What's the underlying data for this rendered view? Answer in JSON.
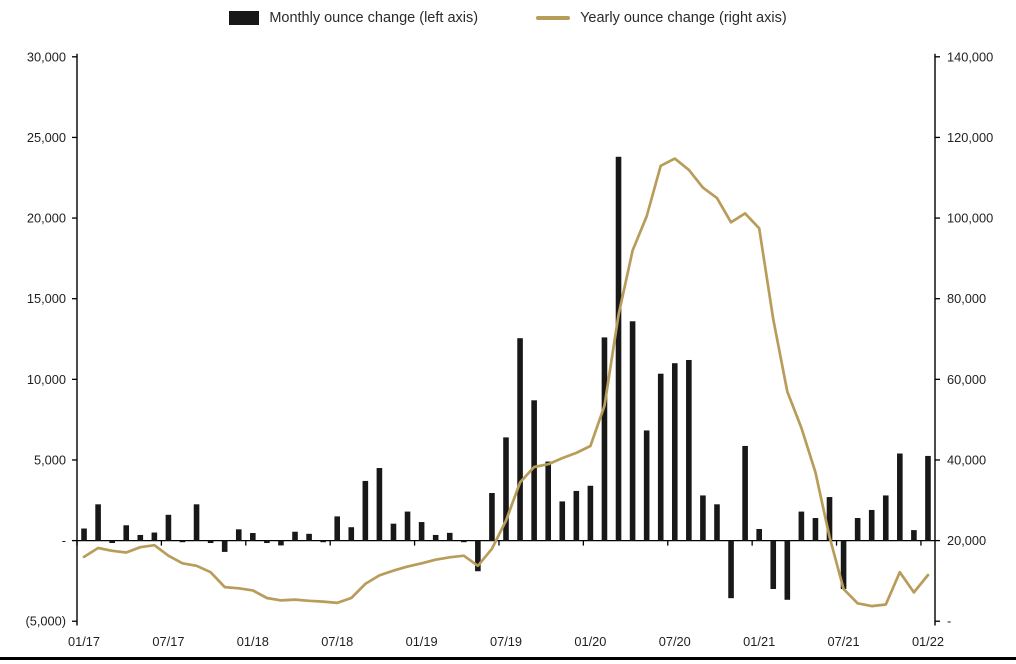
{
  "legend": {
    "monthly_label": "Monthly ounce change (left axis)",
    "yearly_label": "Yearly ounce change (right axis)"
  },
  "colors": {
    "bar": "#181818",
    "line": "#b89c5a",
    "axis": "#000000",
    "text": "#1f1f1f",
    "background": "#ffffff"
  },
  "chart_data": {
    "type": "combo-bar-line",
    "title": "",
    "categories": [
      "01/17",
      "02/17",
      "03/17",
      "04/17",
      "05/17",
      "06/17",
      "07/17",
      "08/17",
      "09/17",
      "10/17",
      "11/17",
      "12/17",
      "01/18",
      "02/18",
      "03/18",
      "04/18",
      "05/18",
      "06/18",
      "07/18",
      "08/18",
      "09/18",
      "10/18",
      "11/18",
      "12/18",
      "01/19",
      "02/19",
      "03/19",
      "04/19",
      "05/19",
      "06/19",
      "07/19",
      "08/19",
      "09/19",
      "10/19",
      "11/19",
      "12/19",
      "01/20",
      "02/20",
      "03/20",
      "04/20",
      "05/20",
      "06/20",
      "07/20",
      "08/20",
      "09/20",
      "10/20",
      "11/20",
      "12/20",
      "01/21",
      "02/21",
      "03/21",
      "04/21",
      "05/21",
      "06/21",
      "07/21",
      "08/21",
      "09/21",
      "10/21",
      "11/21",
      "12/21",
      "01/22"
    ],
    "series": [
      {
        "name": "Monthly ounce change (left axis)",
        "type": "bar",
        "axis": "left",
        "color": "#181818",
        "values": [
          750,
          2250,
          -150,
          950,
          350,
          500,
          1600,
          -100,
          2250,
          -150,
          -700,
          700,
          470,
          -150,
          -300,
          550,
          420,
          -100,
          1500,
          830,
          3700,
          4500,
          1050,
          1800,
          1150,
          350,
          480,
          -100,
          -1900,
          2950,
          6400,
          12550,
          8700,
          4900,
          2430,
          3080,
          3400,
          12600,
          23800,
          13600,
          6830,
          10350,
          11000,
          11200,
          2800,
          2250,
          -3570,
          5870,
          720,
          -3000,
          -3670,
          1800,
          1400,
          2700,
          -3000,
          1400,
          1900,
          2800,
          5400,
          650,
          5250
        ]
      },
      {
        "name": "Yearly ounce change (right axis)",
        "type": "line",
        "axis": "right",
        "color": "#b89c5a",
        "values": [
          16000,
          18200,
          17500,
          17100,
          18400,
          18900,
          16300,
          14400,
          13800,
          12200,
          8500,
          8200,
          7700,
          5800,
          5200,
          5400,
          5100,
          4900,
          4600,
          5800,
          9300,
          11400,
          12600,
          13600,
          14400,
          15300,
          15900,
          16300,
          13800,
          18000,
          25000,
          34500,
          38300,
          39000,
          40500,
          41800,
          43500,
          53500,
          76000,
          92000,
          100500,
          113000,
          114800,
          112000,
          107600,
          105000,
          99000,
          101200,
          97500,
          75000,
          57000,
          48000,
          37000,
          21000,
          8000,
          4500,
          3800,
          4200,
          12200,
          7200,
          11500
        ]
      }
    ],
    "left_axis": {
      "min": -5000,
      "max": 30000,
      "step": 5000,
      "tick_labels": [
        "30,000",
        "25,000",
        "20,000",
        "15,000",
        "10,000",
        "5,000",
        "-",
        "(5,000)"
      ]
    },
    "right_axis": {
      "min": 0,
      "max": 140000,
      "step": 20000,
      "tick_labels": [
        "140,000",
        "120,000",
        "100,000",
        "80,000",
        "60,000",
        "40,000",
        "20,000",
        "-"
      ]
    },
    "x_axis": {
      "tick_labels": [
        "01/17",
        "07/17",
        "01/18",
        "07/18",
        "01/19",
        "07/19",
        "01/20",
        "07/20",
        "01/21",
        "07/21",
        "01/22"
      ],
      "label_every_n_months": 6
    },
    "grid": "off",
    "legend_position": "top-center"
  }
}
